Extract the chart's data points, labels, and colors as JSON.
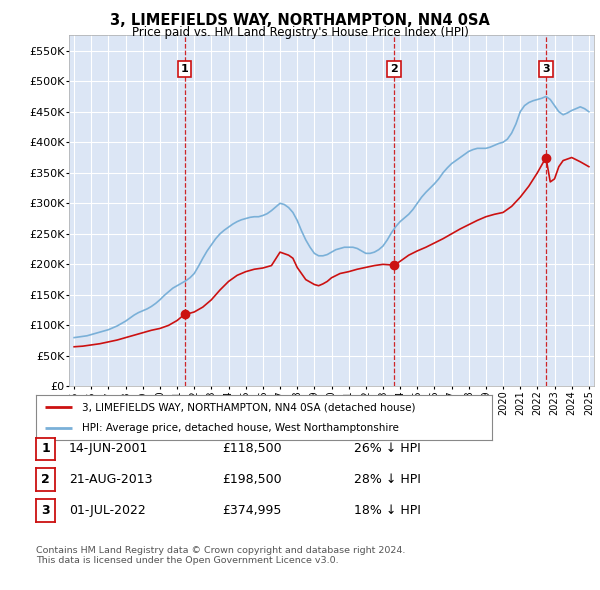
{
  "title": "3, LIMEFIELDS WAY, NORTHAMPTON, NN4 0SA",
  "subtitle": "Price paid vs. HM Land Registry's House Price Index (HPI)",
  "plot_bg_color": "#dce6f5",
  "yticks": [
    0,
    50000,
    100000,
    150000,
    200000,
    250000,
    300000,
    350000,
    400000,
    450000,
    500000,
    550000
  ],
  "ytick_labels": [
    "£0",
    "£50K",
    "£100K",
    "£150K",
    "£200K",
    "£250K",
    "£300K",
    "£350K",
    "£400K",
    "£450K",
    "£500K",
    "£550K"
  ],
  "ylim": [
    0,
    575000
  ],
  "sales": [
    {
      "date_str": "14-JUN-2001",
      "date_num": 2001.45,
      "price": 118500,
      "label": "1",
      "pct": "26% ↓ HPI"
    },
    {
      "date_str": "21-AUG-2013",
      "date_num": 2013.64,
      "price": 198500,
      "label": "2",
      "pct": "28% ↓ HPI"
    },
    {
      "date_str": "01-JUL-2022",
      "date_num": 2022.5,
      "price": 374995,
      "label": "3",
      "pct": "18% ↓ HPI"
    }
  ],
  "hpi_color": "#7ab0d8",
  "sale_color": "#cc1111",
  "vline_color": "#cc1111",
  "legend_label_sale": "3, LIMEFIELDS WAY, NORTHAMPTON, NN4 0SA (detached house)",
  "legend_label_hpi": "HPI: Average price, detached house, West Northamptonshire",
  "footer1": "Contains HM Land Registry data © Crown copyright and database right 2024.",
  "footer2": "This data is licensed under the Open Government Licence v3.0.",
  "xmin": 1994.7,
  "xmax": 2025.3,
  "xticks": [
    1995,
    1996,
    1997,
    1998,
    1999,
    2000,
    2001,
    2002,
    2003,
    2004,
    2005,
    2006,
    2007,
    2008,
    2009,
    2010,
    2011,
    2012,
    2013,
    2014,
    2015,
    2016,
    2017,
    2018,
    2019,
    2020,
    2021,
    2022,
    2023,
    2024,
    2025
  ],
  "hpi_x": [
    1995,
    1995.25,
    1995.5,
    1995.75,
    1996,
    1996.25,
    1996.5,
    1996.75,
    1997,
    1997.25,
    1997.5,
    1997.75,
    1998,
    1998.25,
    1998.5,
    1998.75,
    1999,
    1999.25,
    1999.5,
    1999.75,
    2000,
    2000.25,
    2000.5,
    2000.75,
    2001,
    2001.25,
    2001.5,
    2001.75,
    2002,
    2002.25,
    2002.5,
    2002.75,
    2003,
    2003.25,
    2003.5,
    2003.75,
    2004,
    2004.25,
    2004.5,
    2004.75,
    2005,
    2005.25,
    2005.5,
    2005.75,
    2006,
    2006.25,
    2006.5,
    2006.75,
    2007,
    2007.25,
    2007.5,
    2007.75,
    2008,
    2008.25,
    2008.5,
    2008.75,
    2009,
    2009.25,
    2009.5,
    2009.75,
    2010,
    2010.25,
    2010.5,
    2010.75,
    2011,
    2011.25,
    2011.5,
    2011.75,
    2012,
    2012.25,
    2012.5,
    2012.75,
    2013,
    2013.25,
    2013.5,
    2013.75,
    2014,
    2014.25,
    2014.5,
    2014.75,
    2015,
    2015.25,
    2015.5,
    2015.75,
    2016,
    2016.25,
    2016.5,
    2016.75,
    2017,
    2017.25,
    2017.5,
    2017.75,
    2018,
    2018.25,
    2018.5,
    2018.75,
    2019,
    2019.25,
    2019.5,
    2019.75,
    2020,
    2020.25,
    2020.5,
    2020.75,
    2021,
    2021.25,
    2021.5,
    2021.75,
    2022,
    2022.25,
    2022.5,
    2022.75,
    2023,
    2023.25,
    2023.5,
    2023.75,
    2024,
    2024.25,
    2024.5,
    2024.75,
    2025
  ],
  "hpi_y": [
    80000,
    81000,
    82000,
    83000,
    85000,
    87000,
    89000,
    91000,
    93000,
    96000,
    99000,
    103000,
    107000,
    112000,
    117000,
    121000,
    124000,
    127000,
    131000,
    136000,
    142000,
    149000,
    155000,
    161000,
    165000,
    169000,
    173000,
    178000,
    185000,
    197000,
    210000,
    222000,
    232000,
    242000,
    250000,
    256000,
    261000,
    266000,
    270000,
    273000,
    275000,
    277000,
    278000,
    278000,
    280000,
    283000,
    288000,
    294000,
    300000,
    298000,
    293000,
    285000,
    272000,
    255000,
    240000,
    228000,
    218000,
    214000,
    214000,
    216000,
    220000,
    224000,
    226000,
    228000,
    228000,
    228000,
    226000,
    222000,
    218000,
    218000,
    220000,
    224000,
    230000,
    240000,
    252000,
    262000,
    270000,
    276000,
    282000,
    290000,
    300000,
    310000,
    318000,
    325000,
    332000,
    340000,
    350000,
    358000,
    365000,
    370000,
    375000,
    380000,
    385000,
    388000,
    390000,
    390000,
    390000,
    392000,
    395000,
    398000,
    400000,
    405000,
    415000,
    430000,
    450000,
    460000,
    465000,
    468000,
    470000,
    472000,
    475000,
    470000,
    460000,
    450000,
    445000,
    448000,
    452000,
    455000,
    458000,
    455000,
    450000
  ],
  "red_x": [
    1995.0,
    1995.5,
    1996.0,
    1996.5,
    1997.0,
    1997.5,
    1998.0,
    1998.5,
    1999.0,
    1999.5,
    2000.0,
    2000.5,
    2001.0,
    2001.45,
    2001.75,
    2002.0,
    2002.5,
    2003.0,
    2003.5,
    2004.0,
    2004.5,
    2005.0,
    2005.5,
    2006.0,
    2006.5,
    2007.0,
    2007.5,
    2007.75,
    2008.0,
    2008.5,
    2009.0,
    2009.25,
    2009.5,
    2009.75,
    2010.0,
    2010.5,
    2011.0,
    2011.5,
    2012.0,
    2012.5,
    2013.0,
    2013.5,
    2013.64,
    2014.0,
    2014.5,
    2015.0,
    2015.5,
    2016.0,
    2016.5,
    2017.0,
    2017.5,
    2018.0,
    2018.5,
    2019.0,
    2019.5,
    2020.0,
    2020.5,
    2021.0,
    2021.5,
    2022.0,
    2022.5,
    2022.75,
    2023.0,
    2023.25,
    2023.5,
    2024.0,
    2024.5,
    2025.0
  ],
  "red_y": [
    65000,
    66000,
    68000,
    70000,
    73000,
    76000,
    80000,
    84000,
    88000,
    92000,
    95000,
    100000,
    108000,
    118500,
    120000,
    122000,
    130000,
    142000,
    158000,
    172000,
    182000,
    188000,
    192000,
    194000,
    198000,
    220000,
    215000,
    210000,
    195000,
    175000,
    167000,
    165000,
    168000,
    172000,
    178000,
    185000,
    188000,
    192000,
    195000,
    198000,
    200000,
    199000,
    198500,
    205000,
    215000,
    222000,
    228000,
    235000,
    242000,
    250000,
    258000,
    265000,
    272000,
    278000,
    282000,
    285000,
    295000,
    310000,
    328000,
    350000,
    374995,
    335000,
    340000,
    360000,
    370000,
    375000,
    368000,
    360000
  ]
}
